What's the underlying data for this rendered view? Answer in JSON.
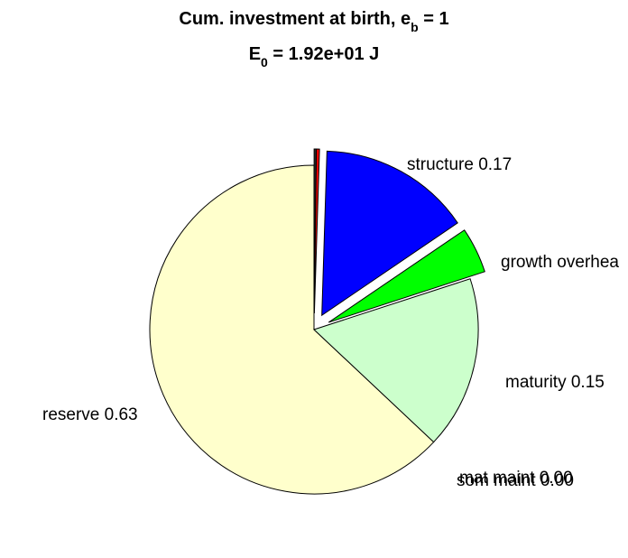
{
  "chart_data": {
    "type": "pie",
    "title": {
      "line1_prefix": "Cum. investment at birth, e",
      "line1_sub": "b",
      "line1_suffix": " = 1",
      "line2_prefix": "E",
      "line2_sub": "0",
      "line2_suffix": " = 1.92e+01 J"
    },
    "slices": [
      {
        "name": "reserve",
        "label": "reserve 0.63",
        "value": 0.63,
        "color": "#FFFFCC",
        "exploded": false
      },
      {
        "name": "structure",
        "label": "structure 0.17",
        "value": 0.17,
        "color": "#CCFFCC",
        "exploded": false
      },
      {
        "name": "growth-overhead",
        "label": "growth overhea",
        "value": 0.045,
        "color": "#00FF00",
        "exploded": true
      },
      {
        "name": "maturity",
        "label": "maturity 0.15",
        "value": 0.15,
        "color": "#0000FF",
        "exploded": true
      },
      {
        "name": "mat-maint",
        "label": "mat maint 0.00",
        "value": 0.003,
        "color": "#FF0000",
        "exploded": true
      },
      {
        "name": "som-maint",
        "label": "som maint 0.00",
        "value": 0.002,
        "color": "#333333",
        "exploded": true
      }
    ]
  }
}
